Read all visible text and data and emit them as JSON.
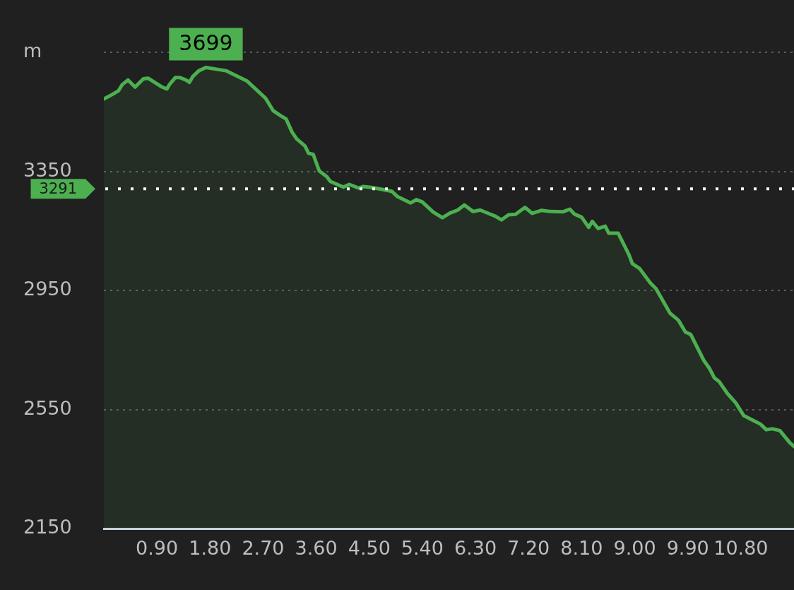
{
  "chart_data": {
    "type": "area",
    "color": "#4caf50",
    "x": [
      0,
      0.15,
      0.25,
      0.31,
      0.41,
      0.53,
      0.67,
      0.75,
      0.83,
      0.99,
      1.07,
      1.11,
      1.21,
      1.29,
      1.39,
      1.45,
      1.51,
      1.61,
      1.73,
      2.07,
      2.43,
      2.74,
      2.87,
      2.99,
      3.09,
      3.19,
      3.27,
      3.41,
      3.47,
      3.55,
      3.65,
      3.78,
      3.84,
      4.06,
      4.16,
      4.32,
      4.4,
      4.54,
      4.7,
      4.88,
      4.98,
      5.2,
      5.3,
      5.4,
      5.58,
      5.74,
      5.86,
      6.0,
      6.11,
      6.26,
      6.38,
      6.54,
      6.64,
      6.74,
      6.86,
      6.98,
      7.14,
      7.26,
      7.42,
      7.58,
      7.78,
      7.9,
      7.98,
      8.1,
      8.22,
      8.28,
      8.38,
      8.5,
      8.56,
      8.72,
      8.9,
      8.96,
      9.08,
      9.26,
      9.36,
      9.6,
      9.74,
      9.86,
      9.95,
      10.17,
      10.27,
      10.35,
      10.43,
      10.57,
      10.71,
      10.85,
      11.05,
      11.13,
      11.23,
      11.33,
      11.46,
      11.63,
      11.7
    ],
    "values": [
      3593,
      3609,
      3621,
      3641,
      3657,
      3633,
      3661,
      3663,
      3653,
      3633,
      3627,
      3641,
      3665,
      3665,
      3657,
      3649,
      3669,
      3688,
      3699,
      3688,
      3653,
      3596,
      3554,
      3538,
      3526,
      3482,
      3459,
      3435,
      3411,
      3407,
      3352,
      3332,
      3316,
      3297,
      3306,
      3294,
      3299,
      3296,
      3290,
      3283,
      3265,
      3244,
      3255,
      3247,
      3214,
      3194,
      3209,
      3220,
      3237,
      3215,
      3220,
      3207,
      3199,
      3187,
      3204,
      3206,
      3229,
      3209,
      3219,
      3215,
      3214,
      3223,
      3206,
      3196,
      3162,
      3182,
      3158,
      3166,
      3142,
      3142,
      3071,
      3040,
      3024,
      2976,
      2956,
      2873,
      2850,
      2810,
      2802,
      2715,
      2687,
      2656,
      2644,
      2604,
      2573,
      2529,
      2509,
      2501,
      2482,
      2485,
      2479,
      2438,
      2426
    ],
    "xlim": [
      0,
      11.7
    ],
    "xticks": [
      {
        "value": 0.9,
        "label": "0.90"
      },
      {
        "value": 1.8,
        "label": "1.80"
      },
      {
        "value": 2.7,
        "label": "2.70"
      },
      {
        "value": 3.6,
        "label": "3.60"
      },
      {
        "value": 4.5,
        "label": "4.50"
      },
      {
        "value": 5.4,
        "label": "5.40"
      },
      {
        "value": 6.3,
        "label": "6.30"
      },
      {
        "value": 7.2,
        "label": "7.20"
      },
      {
        "value": 8.1,
        "label": "8.10"
      },
      {
        "value": 9,
        "label": "9.00"
      },
      {
        "value": 9.9,
        "label": "9.90"
      },
      {
        "value": 10.8,
        "label": "10.80"
      }
    ],
    "ylim": [
      2150,
      3750
    ],
    "yticks": [
      2150,
      2550,
      2950,
      3350,
      {
        "value": 3750,
        "label": "m"
      }
    ],
    "grid": "y",
    "ref_lines": [
      {
        "axis": "y",
        "value": 3291,
        "label": "3291",
        "color": "#ffffff",
        "line_style": "dotted"
      }
    ],
    "annotations": [
      {
        "text": "3699",
        "x": 1.73,
        "y": 3699
      }
    ]
  }
}
